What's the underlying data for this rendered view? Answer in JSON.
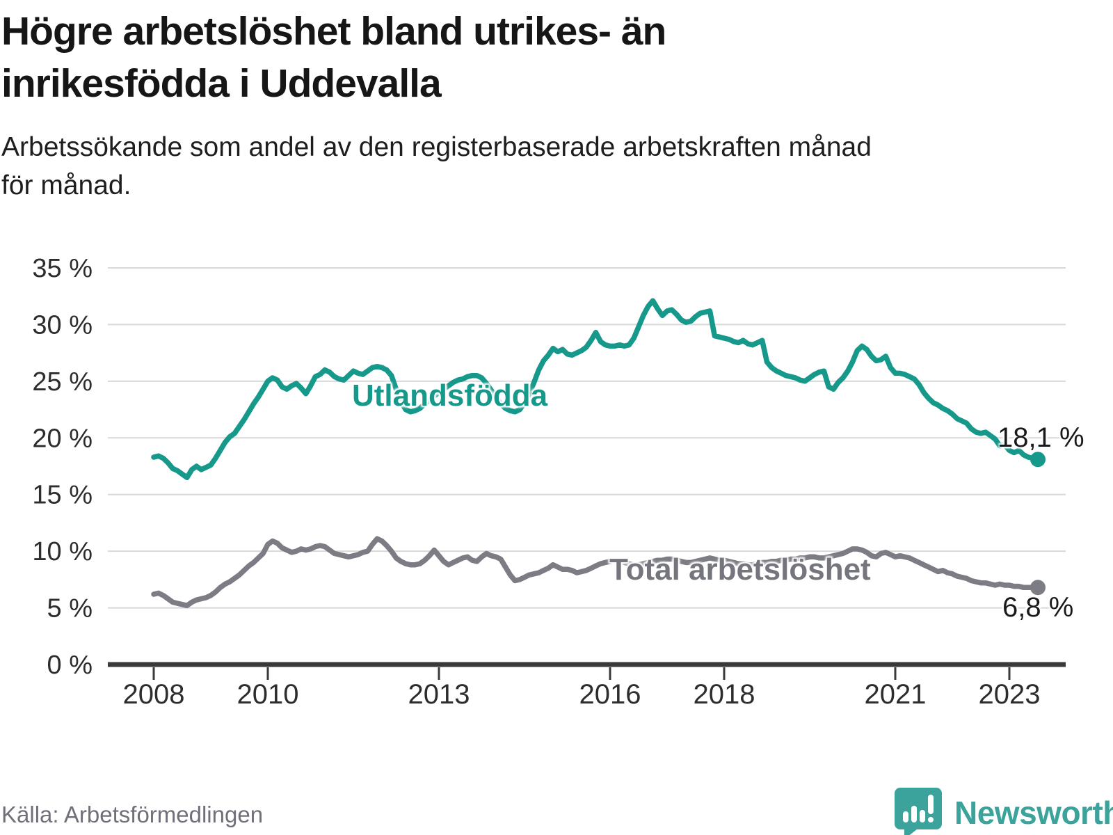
{
  "header": {
    "title_lines": [
      "Högre arbetslöshet bland utrikes- än",
      "inrikesfödda i Uddevalla"
    ],
    "subtitle_lines": [
      "Arbetssökande som andel av den registerbaserade arbetskraften månad",
      "för månad."
    ]
  },
  "chart_data": {
    "type": "line",
    "title": "Högre arbetslöshet bland utrikes- än inrikesfödda i Uddevalla",
    "subtitle": "Arbetssökande som andel av den registerbaserade arbetskraften månad för månad.",
    "unit": "%",
    "frequency": "monthly",
    "start": {
      "year": 2008,
      "month": 1
    },
    "end": {
      "year": 2023,
      "month": 7
    },
    "ylim": [
      0,
      35
    ],
    "grid": true,
    "legend_position": "inline-labels",
    "y_ticks": [
      {
        "value": 0,
        "label": "0 %"
      },
      {
        "value": 5,
        "label": "5 %"
      },
      {
        "value": 10,
        "label": "10 %"
      },
      {
        "value": 15,
        "label": "15 %"
      },
      {
        "value": 20,
        "label": "20 %"
      },
      {
        "value": 25,
        "label": "25 %"
      },
      {
        "value": 30,
        "label": "30 %"
      },
      {
        "value": 35,
        "label": "35 %"
      }
    ],
    "x_ticks": [
      {
        "year": 2008,
        "label": "2008"
      },
      {
        "year": 2010,
        "label": "2010"
      },
      {
        "year": 2013,
        "label": "2013"
      },
      {
        "year": 2016,
        "label": "2016"
      },
      {
        "year": 2018,
        "label": "2018"
      },
      {
        "year": 2021,
        "label": "2021"
      },
      {
        "year": 2023,
        "label": "2023"
      }
    ],
    "series": [
      {
        "name": "Utlandsfödda",
        "color": "#16988A",
        "last_value": 18.1,
        "label_value": "18,1 %",
        "values": [
          18.3,
          18.4,
          18.2,
          17.8,
          17.3,
          17.1,
          16.8,
          16.5,
          17.2,
          17.5,
          17.2,
          17.4,
          17.6,
          18.2,
          18.9,
          19.6,
          20.1,
          20.4,
          21.0,
          21.6,
          22.3,
          23.0,
          23.6,
          24.3,
          25.0,
          25.3,
          25.1,
          24.5,
          24.3,
          24.6,
          24.8,
          24.4,
          23.9,
          24.6,
          25.4,
          25.6,
          26.0,
          25.8,
          25.4,
          25.2,
          25.1,
          25.5,
          25.9,
          25.7,
          25.6,
          25.9,
          26.2,
          26.3,
          26.2,
          26.0,
          25.5,
          24.3,
          23.2,
          22.5,
          22.3,
          22.4,
          22.6,
          23.0,
          23.3,
          23.7,
          24.0,
          24.3,
          24.6,
          24.9,
          25.1,
          25.2,
          25.4,
          25.5,
          25.5,
          25.3,
          24.8,
          24.2,
          23.6,
          23.0,
          22.6,
          22.4,
          22.3,
          22.5,
          23.1,
          23.9,
          24.9,
          26.0,
          26.8,
          27.3,
          27.9,
          27.6,
          27.8,
          27.4,
          27.3,
          27.5,
          27.7,
          28.0,
          28.6,
          29.3,
          28.5,
          28.2,
          28.1,
          28.1,
          28.2,
          28.1,
          28.2,
          28.8,
          29.8,
          30.8,
          31.6,
          32.1,
          31.4,
          30.8,
          31.2,
          31.3,
          30.9,
          30.4,
          30.2,
          30.3,
          30.7,
          31.0,
          31.1,
          31.2,
          29.0,
          28.9,
          28.8,
          28.7,
          28.5,
          28.4,
          28.6,
          28.3,
          28.2,
          28.4,
          28.6,
          26.7,
          26.2,
          25.9,
          25.7,
          25.5,
          25.4,
          25.3,
          25.1,
          25.0,
          25.3,
          25.6,
          25.8,
          25.9,
          24.5,
          24.3,
          24.9,
          25.3,
          25.9,
          26.7,
          27.7,
          28.1,
          27.8,
          27.2,
          26.8,
          26.9,
          27.2,
          26.2,
          25.7,
          25.7,
          25.6,
          25.4,
          25.2,
          24.7,
          24.0,
          23.5,
          23.1,
          22.9,
          22.6,
          22.4,
          22.1,
          21.7,
          21.5,
          21.3,
          20.8,
          20.5,
          20.4,
          20.5,
          20.2,
          19.9,
          19.3,
          19.4,
          18.9,
          18.7,
          18.9,
          18.5,
          18.3,
          18.2,
          18.1
        ]
      },
      {
        "name": "Total arbetslöshet",
        "color": "#7C7C85",
        "last_value": 6.8,
        "label_value": "6,8 %",
        "values": [
          6.2,
          6.3,
          6.1,
          5.8,
          5.5,
          5.4,
          5.3,
          5.2,
          5.5,
          5.7,
          5.8,
          5.9,
          6.1,
          6.4,
          6.8,
          7.1,
          7.3,
          7.6,
          7.9,
          8.3,
          8.7,
          9.0,
          9.4,
          9.8,
          10.6,
          10.9,
          10.7,
          10.3,
          10.1,
          9.9,
          10.0,
          10.2,
          10.1,
          10.2,
          10.4,
          10.5,
          10.4,
          10.1,
          9.8,
          9.7,
          9.6,
          9.5,
          9.6,
          9.7,
          9.9,
          10.0,
          10.6,
          11.1,
          10.9,
          10.5,
          10.0,
          9.4,
          9.1,
          8.9,
          8.8,
          8.8,
          8.9,
          9.2,
          9.6,
          10.1,
          9.6,
          9.1,
          8.8,
          9.0,
          9.2,
          9.4,
          9.5,
          9.2,
          9.1,
          9.5,
          9.8,
          9.6,
          9.5,
          9.3,
          8.6,
          7.9,
          7.4,
          7.5,
          7.7,
          7.9,
          8.0,
          8.1,
          8.3,
          8.5,
          8.8,
          8.6,
          8.4,
          8.4,
          8.3,
          8.1,
          8.2,
          8.3,
          8.5,
          8.7,
          8.9,
          9.0,
          9.1,
          9.2,
          9.1,
          9.0,
          8.9,
          8.8,
          8.8,
          8.9,
          9.0,
          9.1,
          9.2,
          9.2,
          9.3,
          9.3,
          9.2,
          9.1,
          9.0,
          9.0,
          9.1,
          9.2,
          9.3,
          9.4,
          9.3,
          9.2,
          9.2,
          9.1,
          9.0,
          8.9,
          8.9,
          8.8,
          8.8,
          8.9,
          9.0,
          9.0,
          9.1,
          9.1,
          9.2,
          9.2,
          9.3,
          9.3,
          9.4,
          9.4,
          9.5,
          9.5,
          9.4,
          9.4,
          9.5,
          9.6,
          9.7,
          9.8,
          10.0,
          10.2,
          10.2,
          10.1,
          9.9,
          9.6,
          9.5,
          9.8,
          9.9,
          9.7,
          9.5,
          9.6,
          9.5,
          9.4,
          9.2,
          9.0,
          8.8,
          8.6,
          8.4,
          8.2,
          8.3,
          8.1,
          8.0,
          7.8,
          7.7,
          7.6,
          7.4,
          7.3,
          7.2,
          7.2,
          7.1,
          7.0,
          7.1,
          7.0,
          7.0,
          6.9,
          6.9,
          6.8,
          6.8,
          6.8,
          6.8
        ]
      }
    ],
    "colors": {
      "grid": "#D8D8D8",
      "axis": "#3A3A3A",
      "tick_text": "#2D2D2D"
    }
  },
  "footer": {
    "source": "Källa: Arbetsförmedlingen",
    "brand": "Newsworthy"
  }
}
